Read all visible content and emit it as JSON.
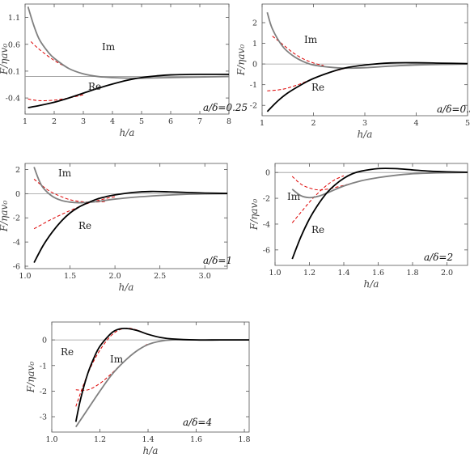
{
  "chart_data": [
    {
      "type": "line",
      "panel": "a/delta=0.25",
      "annotation": "a/δ=0.25",
      "xlabel": "h/a",
      "ylabel": "F/ηav₀",
      "xlim": [
        1,
        8
      ],
      "ylim": [
        -0.7,
        1.35
      ],
      "xticks": [
        1,
        2,
        3,
        4,
        5,
        6,
        7,
        8
      ],
      "yticks": [
        -0.4,
        0.1,
        0.6,
        1.1
      ],
      "ytick_labels": [
        "-0.4",
        "0.1",
        "0.6",
        "1.1"
      ],
      "xtick_labels": [
        "1",
        "2",
        "3",
        "4",
        "5",
        "6",
        "7",
        "8"
      ],
      "zero_line": true,
      "series": [
        {
          "name": "Re",
          "label": "Re",
          "style": "solid",
          "color": "#000000",
          "x": [
            1.1,
            1.5,
            2,
            2.5,
            3,
            3.5,
            4,
            4.5,
            5,
            5.5,
            6,
            7,
            8
          ],
          "y": [
            -0.58,
            -0.54,
            -0.48,
            -0.4,
            -0.31,
            -0.22,
            -0.14,
            -0.07,
            -0.02,
            0.01,
            0.03,
            0.04,
            0.04
          ]
        },
        {
          "name": "Im",
          "label": "Im",
          "style": "solid",
          "color": "#808080",
          "x": [
            1.1,
            1.3,
            1.5,
            1.8,
            2,
            2.5,
            3,
            3.5,
            4,
            4.5,
            5,
            6,
            7,
            8
          ],
          "y": [
            1.3,
            0.95,
            0.68,
            0.45,
            0.34,
            0.15,
            0.05,
            0.0,
            -0.02,
            -0.03,
            -0.03,
            -0.02,
            -0.01,
            0.0
          ]
        },
        {
          "name": "Re approx",
          "style": "dashed",
          "color": "#dd0000",
          "x": [
            1.1,
            1.5,
            2,
            2.5,
            3
          ],
          "y": [
            -0.42,
            -0.45,
            -0.44,
            -0.4,
            -0.34
          ]
        },
        {
          "name": "Im approx",
          "style": "dashed",
          "color": "#dd0000",
          "x": [
            1.2,
            1.5,
            2,
            2.5
          ],
          "y": [
            0.65,
            0.5,
            0.3,
            0.15
          ]
        }
      ]
    },
    {
      "type": "line",
      "panel": "a/delta=0.5",
      "annotation": "a/δ=0.5",
      "xlabel": "h/a",
      "ylabel": "F/ηav₀",
      "xlim": [
        1,
        5
      ],
      "ylim": [
        -2.5,
        2.9
      ],
      "xticks": [
        1,
        2,
        3,
        4,
        5
      ],
      "yticks": [
        -2,
        -1,
        0,
        1,
        2
      ],
      "ytick_labels": [
        "-2",
        "-1",
        "0",
        "1",
        "2"
      ],
      "xtick_labels": [
        "1",
        "2",
        "3",
        "4",
        "5"
      ],
      "zero_line": true,
      "series": [
        {
          "name": "Re",
          "label": "Re",
          "style": "solid",
          "color": "#000000",
          "x": [
            1.1,
            1.3,
            1.5,
            1.8,
            2,
            2.3,
            2.6,
            3,
            3.5,
            4,
            4.5,
            5
          ],
          "y": [
            -2.3,
            -1.8,
            -1.4,
            -0.95,
            -0.7,
            -0.42,
            -0.2,
            -0.05,
            0.05,
            0.06,
            0.04,
            0.02
          ]
        },
        {
          "name": "Im",
          "label": "Im",
          "style": "solid",
          "color": "#808080",
          "x": [
            1.1,
            1.2,
            1.4,
            1.6,
            1.8,
            2,
            2.3,
            2.6,
            3,
            3.5,
            4,
            4.5,
            5
          ],
          "y": [
            2.5,
            1.7,
            0.85,
            0.4,
            0.12,
            -0.05,
            -0.15,
            -0.2,
            -0.18,
            -0.1,
            -0.05,
            -0.02,
            0.0
          ]
        },
        {
          "name": "Re approx",
          "style": "dashed",
          "color": "#dd0000",
          "x": [
            1.1,
            1.4,
            1.7,
            2,
            2.3,
            2.6
          ],
          "y": [
            -1.3,
            -1.22,
            -1.0,
            -0.7,
            -0.42,
            -0.22
          ]
        },
        {
          "name": "Im approx",
          "style": "dashed",
          "color": "#dd0000",
          "x": [
            1.2,
            1.4,
            1.6,
            1.8,
            2,
            2.2
          ],
          "y": [
            1.35,
            0.95,
            0.55,
            0.25,
            0.05,
            -0.08
          ]
        }
      ]
    },
    {
      "type": "line",
      "panel": "a/delta=1",
      "annotation": "a/δ=1",
      "xlabel": "h/a",
      "ylabel": "F/ηav₀",
      "xlim": [
        1.0,
        3.25
      ],
      "ylim": [
        -6.2,
        2.5
      ],
      "xticks": [
        1.0,
        1.5,
        2.0,
        2.5,
        3.0
      ],
      "yticks": [
        -6,
        -4,
        -2,
        0,
        2
      ],
      "ytick_labels": [
        "-6",
        "-4",
        "-2",
        "0",
        "2"
      ],
      "xtick_labels": [
        "1.0",
        "1.5",
        "2.0",
        "2.5",
        "3.0"
      ],
      "zero_line": true,
      "series": [
        {
          "name": "Re",
          "label": "Re",
          "style": "solid",
          "color": "#000000",
          "x": [
            1.1,
            1.2,
            1.3,
            1.4,
            1.5,
            1.6,
            1.7,
            1.8,
            1.9,
            2.0,
            2.2,
            2.4,
            2.6,
            2.8,
            3.0,
            3.25
          ],
          "y": [
            -5.7,
            -4.3,
            -3.2,
            -2.3,
            -1.6,
            -1.1,
            -0.75,
            -0.45,
            -0.25,
            -0.1,
            0.1,
            0.18,
            0.15,
            0.1,
            0.05,
            0.02
          ]
        },
        {
          "name": "Im",
          "label": "Im",
          "style": "solid",
          "color": "#808080",
          "x": [
            1.1,
            1.15,
            1.2,
            1.3,
            1.4,
            1.5,
            1.6,
            1.7,
            1.8,
            2.0,
            2.2,
            2.5,
            2.8,
            3.0,
            3.25
          ],
          "y": [
            2.2,
            1.2,
            0.5,
            -0.2,
            -0.55,
            -0.7,
            -0.75,
            -0.72,
            -0.65,
            -0.45,
            -0.3,
            -0.15,
            -0.05,
            -0.02,
            0.0
          ]
        },
        {
          "name": "Re approx",
          "style": "dashed",
          "color": "#dd0000",
          "x": [
            1.1,
            1.3,
            1.5,
            1.7,
            1.9,
            2.0
          ],
          "y": [
            -2.9,
            -2.1,
            -1.4,
            -0.8,
            -0.4,
            -0.25
          ]
        },
        {
          "name": "Im approx",
          "style": "dashed",
          "color": "#dd0000",
          "x": [
            1.1,
            1.2,
            1.3,
            1.5,
            1.7,
            1.9
          ],
          "y": [
            1.2,
            0.6,
            0.1,
            -0.5,
            -0.7,
            -0.65
          ]
        }
      ]
    },
    {
      "type": "line",
      "panel": "a/delta=2",
      "annotation": "a/δ=2",
      "xlabel": "h/a",
      "ylabel": "F/ηav₀",
      "xlim": [
        1.0,
        2.12
      ],
      "ylim": [
        -7.2,
        0.7
      ],
      "xticks": [
        1.0,
        1.2,
        1.4,
        1.6,
        1.8,
        2.0
      ],
      "yticks": [
        -6,
        -4,
        -2,
        0
      ],
      "ytick_labels": [
        "-6",
        "-4",
        "-2",
        "0"
      ],
      "xtick_labels": [
        "1.0",
        "1.2",
        "1.4",
        "1.6",
        "1.8",
        "2.0"
      ],
      "zero_line": true,
      "series": [
        {
          "name": "Re",
          "label": "Re",
          "style": "solid",
          "color": "#000000",
          "x": [
            1.1,
            1.15,
            1.2,
            1.25,
            1.3,
            1.35,
            1.4,
            1.45,
            1.5,
            1.6,
            1.7,
            1.8,
            1.9,
            2.0,
            2.12
          ],
          "y": [
            -6.7,
            -5.0,
            -3.6,
            -2.5,
            -1.6,
            -0.95,
            -0.45,
            -0.1,
            0.1,
            0.3,
            0.3,
            0.2,
            0.1,
            0.05,
            0.02
          ]
        },
        {
          "name": "Im",
          "label": "Im",
          "style": "solid",
          "color": "#808080",
          "x": [
            1.1,
            1.15,
            1.2,
            1.25,
            1.3,
            1.4,
            1.5,
            1.6,
            1.7,
            1.8,
            1.9,
            2.0,
            2.12
          ],
          "y": [
            -1.3,
            -1.8,
            -1.95,
            -1.85,
            -1.6,
            -1.05,
            -0.65,
            -0.4,
            -0.22,
            -0.1,
            -0.05,
            -0.02,
            0.0
          ]
        },
        {
          "name": "Re approx",
          "style": "dashed",
          "color": "#dd0000",
          "x": [
            1.1,
            1.15,
            1.2,
            1.25,
            1.3,
            1.35,
            1.4
          ],
          "y": [
            -3.9,
            -3.1,
            -2.3,
            -1.6,
            -1.0,
            -0.55,
            -0.25
          ]
        },
        {
          "name": "Im approx",
          "style": "dashed",
          "color": "#dd0000",
          "x": [
            1.1,
            1.15,
            1.2,
            1.25,
            1.3,
            1.4,
            1.5
          ],
          "y": [
            -0.3,
            -0.9,
            -1.2,
            -1.35,
            -1.3,
            -1.0,
            -0.65
          ]
        }
      ]
    },
    {
      "type": "line",
      "panel": "a/delta=4",
      "annotation": "a/δ=4",
      "xlabel": "h/a",
      "ylabel": "F/ηav₀",
      "xlim": [
        1.0,
        1.82
      ],
      "ylim": [
        -3.6,
        0.7
      ],
      "xticks": [
        1.0,
        1.2,
        1.4,
        1.6,
        1.8
      ],
      "yticks": [
        -3,
        -2,
        -1,
        0
      ],
      "ytick_labels": [
        "-3",
        "-2",
        "-1",
        "0"
      ],
      "xtick_labels": [
        "1.0",
        "1.2",
        "1.4",
        "1.6",
        "1.8"
      ],
      "zero_line": true,
      "series": [
        {
          "name": "Re",
          "label": "Re",
          "style": "solid",
          "color": "#000000",
          "x": [
            1.1,
            1.12,
            1.15,
            1.18,
            1.2,
            1.23,
            1.26,
            1.3,
            1.35,
            1.4,
            1.45,
            1.5,
            1.6,
            1.7,
            1.82
          ],
          "y": [
            -3.2,
            -2.3,
            -1.3,
            -0.6,
            -0.25,
            0.1,
            0.35,
            0.45,
            0.38,
            0.22,
            0.1,
            0.04,
            0.0,
            0.0,
            0.0
          ]
        },
        {
          "name": "Im",
          "label": "Im",
          "style": "solid",
          "color": "#808080",
          "x": [
            1.1,
            1.15,
            1.2,
            1.25,
            1.3,
            1.35,
            1.4,
            1.45,
            1.5,
            1.6,
            1.7,
            1.82
          ],
          "y": [
            -3.4,
            -2.7,
            -2.0,
            -1.35,
            -0.85,
            -0.45,
            -0.18,
            -0.05,
            0.0,
            0.0,
            0.0,
            0.0
          ]
        },
        {
          "name": "Re approx",
          "style": "dashed",
          "color": "#dd0000",
          "x": [
            1.1,
            1.13,
            1.16,
            1.2,
            1.25,
            1.3,
            1.35,
            1.4
          ],
          "y": [
            -2.6,
            -1.8,
            -1.1,
            -0.4,
            0.2,
            0.45,
            0.4,
            0.2
          ]
        },
        {
          "name": "Im approx",
          "style": "dashed",
          "color": "#dd0000",
          "x": [
            1.1,
            1.15,
            1.2,
            1.25,
            1.3,
            1.35,
            1.4
          ],
          "y": [
            -1.95,
            -1.95,
            -1.7,
            -1.3,
            -0.85,
            -0.45,
            -0.15
          ]
        }
      ]
    }
  ]
}
